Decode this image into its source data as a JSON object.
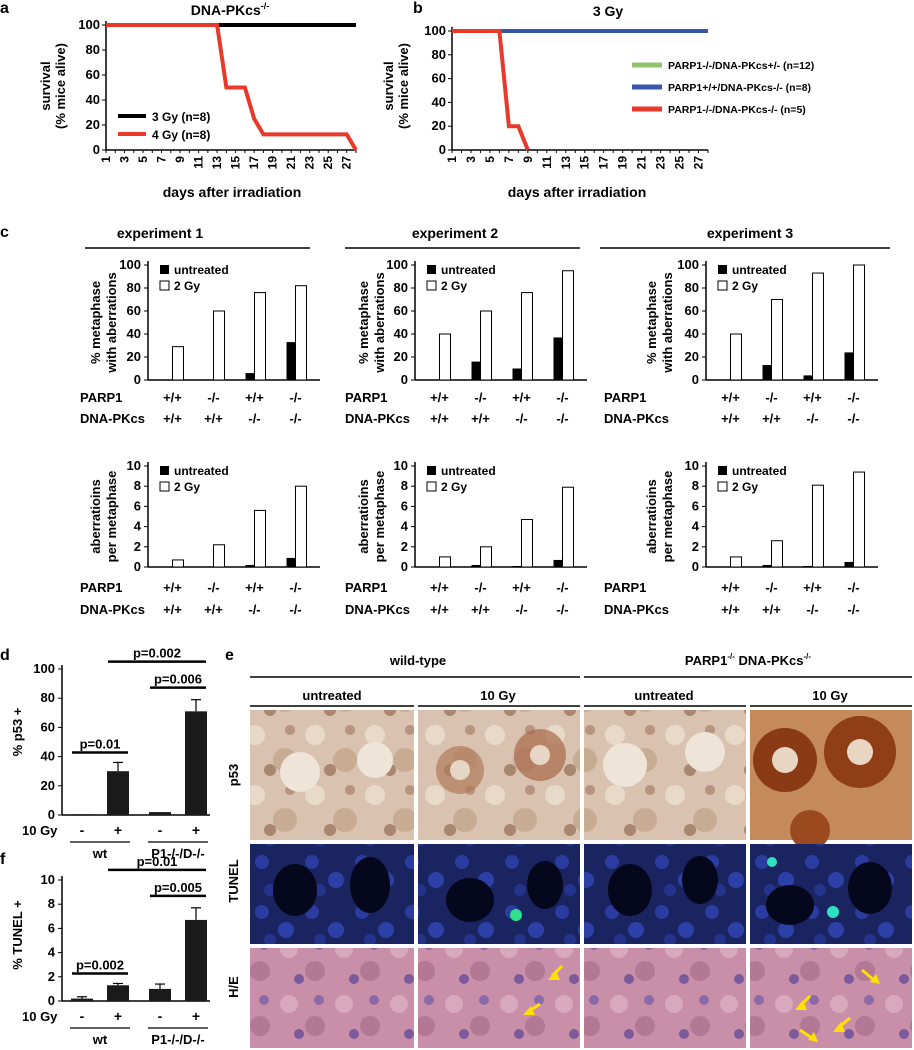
{
  "colors": {
    "red": "#e8392b",
    "green": "#8fc26a",
    "blue": "#3a56a8",
    "black": "#000000"
  },
  "panel_letters": {
    "a": "a",
    "b": "b",
    "c": "c",
    "d": "d",
    "e": "e",
    "f": "f"
  },
  "row_labels": {
    "parp1": "PARP1",
    "dnapkcs": "DNA-PKcs"
  },
  "legend_c": {
    "untreated": "untreated",
    "gy2": "2 Gy"
  },
  "chart_data": [
    {
      "id": "a",
      "type": "line",
      "title": "DNA-PKcs",
      "title_sup": "-/-",
      "ylabel": [
        "survival",
        "(% mice alive)"
      ],
      "xlabel": "days after irradiation",
      "xlim": [
        1,
        28
      ],
      "ylim": [
        0,
        100
      ],
      "yticks": [
        0,
        20,
        40,
        60,
        80,
        100
      ],
      "xticks": [
        1,
        3,
        5,
        7,
        9,
        11,
        13,
        15,
        17,
        19,
        21,
        23,
        25,
        27
      ],
      "series": [
        {
          "name": "3 Gy (n=8)",
          "color": "#000000",
          "points": [
            [
              1,
              100
            ],
            [
              28,
              100
            ]
          ]
        },
        {
          "name": "4 Gy (n=8)",
          "color": "#e8392b",
          "points": [
            [
              1,
              100
            ],
            [
              13,
              100
            ],
            [
              14,
              50
            ],
            [
              16,
              50
            ],
            [
              17,
              25
            ],
            [
              18,
              12.5
            ],
            [
              27,
              12.5
            ],
            [
              28,
              0
            ]
          ]
        }
      ]
    },
    {
      "id": "b",
      "type": "line",
      "title": "3 Gy",
      "ylabel": [
        "survival",
        "(% mice alive)"
      ],
      "xlabel": "days after irradiation",
      "xlim": [
        1,
        28
      ],
      "ylim": [
        0,
        100
      ],
      "yticks": [
        0,
        20,
        40,
        60,
        80,
        100
      ],
      "xticks": [
        1,
        3,
        5,
        7,
        9,
        11,
        13,
        15,
        17,
        19,
        21,
        23,
        25,
        27
      ],
      "series": [
        {
          "name": "PARP1-/-/DNA-PKcs+/- (n=12)",
          "color": "#8fc26a",
          "points": [
            [
              1,
              100
            ],
            [
              28,
              100
            ]
          ]
        },
        {
          "name": "PARP1+/+/DNA-PKcs-/- (n=8)",
          "color": "#3a56a8",
          "points": [
            [
              1,
              100
            ],
            [
              28,
              100
            ]
          ]
        },
        {
          "name": "PARP1-/-/DNA-PKcs-/- (n=5)",
          "color": "#e8392b",
          "points": [
            [
              1,
              100
            ],
            [
              6,
              100
            ],
            [
              7,
              20
            ],
            [
              8,
              20
            ],
            [
              9,
              0
            ]
          ]
        }
      ]
    },
    {
      "id": "c",
      "type": "bar",
      "experiments": [
        "experiment 1",
        "experiment 2",
        "experiment 3"
      ],
      "genotypes": {
        "PARP1": [
          "+/+",
          "-/-",
          "+/+",
          "-/-"
        ],
        "DNA-PKcs": [
          "+/+",
          "+/+",
          "-/-",
          "-/-"
        ]
      },
      "legend": [
        "untreated",
        "2 Gy"
      ],
      "rows": [
        {
          "ylabel": [
            "% metaphase",
            "with aberrations"
          ],
          "ylim": [
            0,
            100
          ],
          "yticks": [
            0,
            20,
            40,
            60,
            80,
            100
          ],
          "data": [
            {
              "untreated": [
                0,
                0,
                6,
                33
              ],
              "gy2": [
                29,
                60,
                76,
                82
              ]
            },
            {
              "untreated": [
                0,
                16,
                10,
                37
              ],
              "gy2": [
                40,
                60,
                76,
                95
              ]
            },
            {
              "untreated": [
                0,
                13,
                4,
                24
              ],
              "gy2": [
                40,
                70,
                93,
                100
              ]
            }
          ]
        },
        {
          "ylabel": [
            "aberratioins",
            "per metaphase"
          ],
          "ylim": [
            0,
            10
          ],
          "yticks": [
            0,
            2,
            4,
            6,
            8,
            10
          ],
          "data": [
            {
              "untreated": [
                0,
                0,
                0.2,
                0.9
              ],
              "gy2": [
                0.7,
                2.2,
                5.6,
                8.0
              ]
            },
            {
              "untreated": [
                0,
                0.2,
                0.1,
                0.7
              ],
              "gy2": [
                1.0,
                2.0,
                4.7,
                7.9
              ]
            },
            {
              "untreated": [
                0,
                0.2,
                0.1,
                0.5
              ],
              "gy2": [
                1.0,
                2.6,
                8.1,
                9.4
              ]
            }
          ]
        }
      ]
    },
    {
      "id": "d",
      "type": "bar",
      "ylabel": "% p53 +",
      "ylim": [
        0,
        100
      ],
      "yticks": [
        0,
        20,
        40,
        60,
        80,
        100
      ],
      "treatment_label": "10 Gy",
      "treatment": [
        "-",
        "+",
        "-",
        "+"
      ],
      "groups": [
        "wt",
        "P1-/-/D-/-"
      ],
      "values": [
        0.5,
        30,
        2,
        71
      ],
      "errors": [
        0,
        6,
        0,
        8
      ],
      "comparisons": [
        {
          "label": "p=0.01",
          "from": 0,
          "to": 1
        },
        {
          "label": "p=0.006",
          "from": 2,
          "to": 3
        },
        {
          "label": "p=0.002",
          "from": 1,
          "to": 3
        }
      ]
    },
    {
      "id": "f",
      "type": "bar",
      "ylabel": "% TUNEL +",
      "ylim": [
        0,
        10
      ],
      "yticks": [
        0,
        2,
        4,
        6,
        8,
        10
      ],
      "treatment_label": "10 Gy",
      "treatment": [
        "-",
        "+",
        "-",
        "+"
      ],
      "groups": [
        "wt",
        "P1-/-/D-/-"
      ],
      "values": [
        0.2,
        1.3,
        1.0,
        6.7
      ],
      "errors": [
        0.15,
        0.15,
        0.4,
        1.0
      ],
      "comparisons": [
        {
          "label": "p=0.002",
          "from": 0,
          "to": 1
        },
        {
          "label": "p=0.005",
          "from": 2,
          "to": 3
        },
        {
          "label": "p=0.01",
          "from": 1,
          "to": 3
        }
      ]
    }
  ],
  "panel_e": {
    "groups": [
      "wild-type",
      "PARP1-/- DNA-PKcs-/-"
    ],
    "columns": [
      "untreated",
      "10 Gy",
      "untreated",
      "10 Gy"
    ],
    "rows": [
      "p53",
      "TUNEL",
      "H/E"
    ]
  }
}
